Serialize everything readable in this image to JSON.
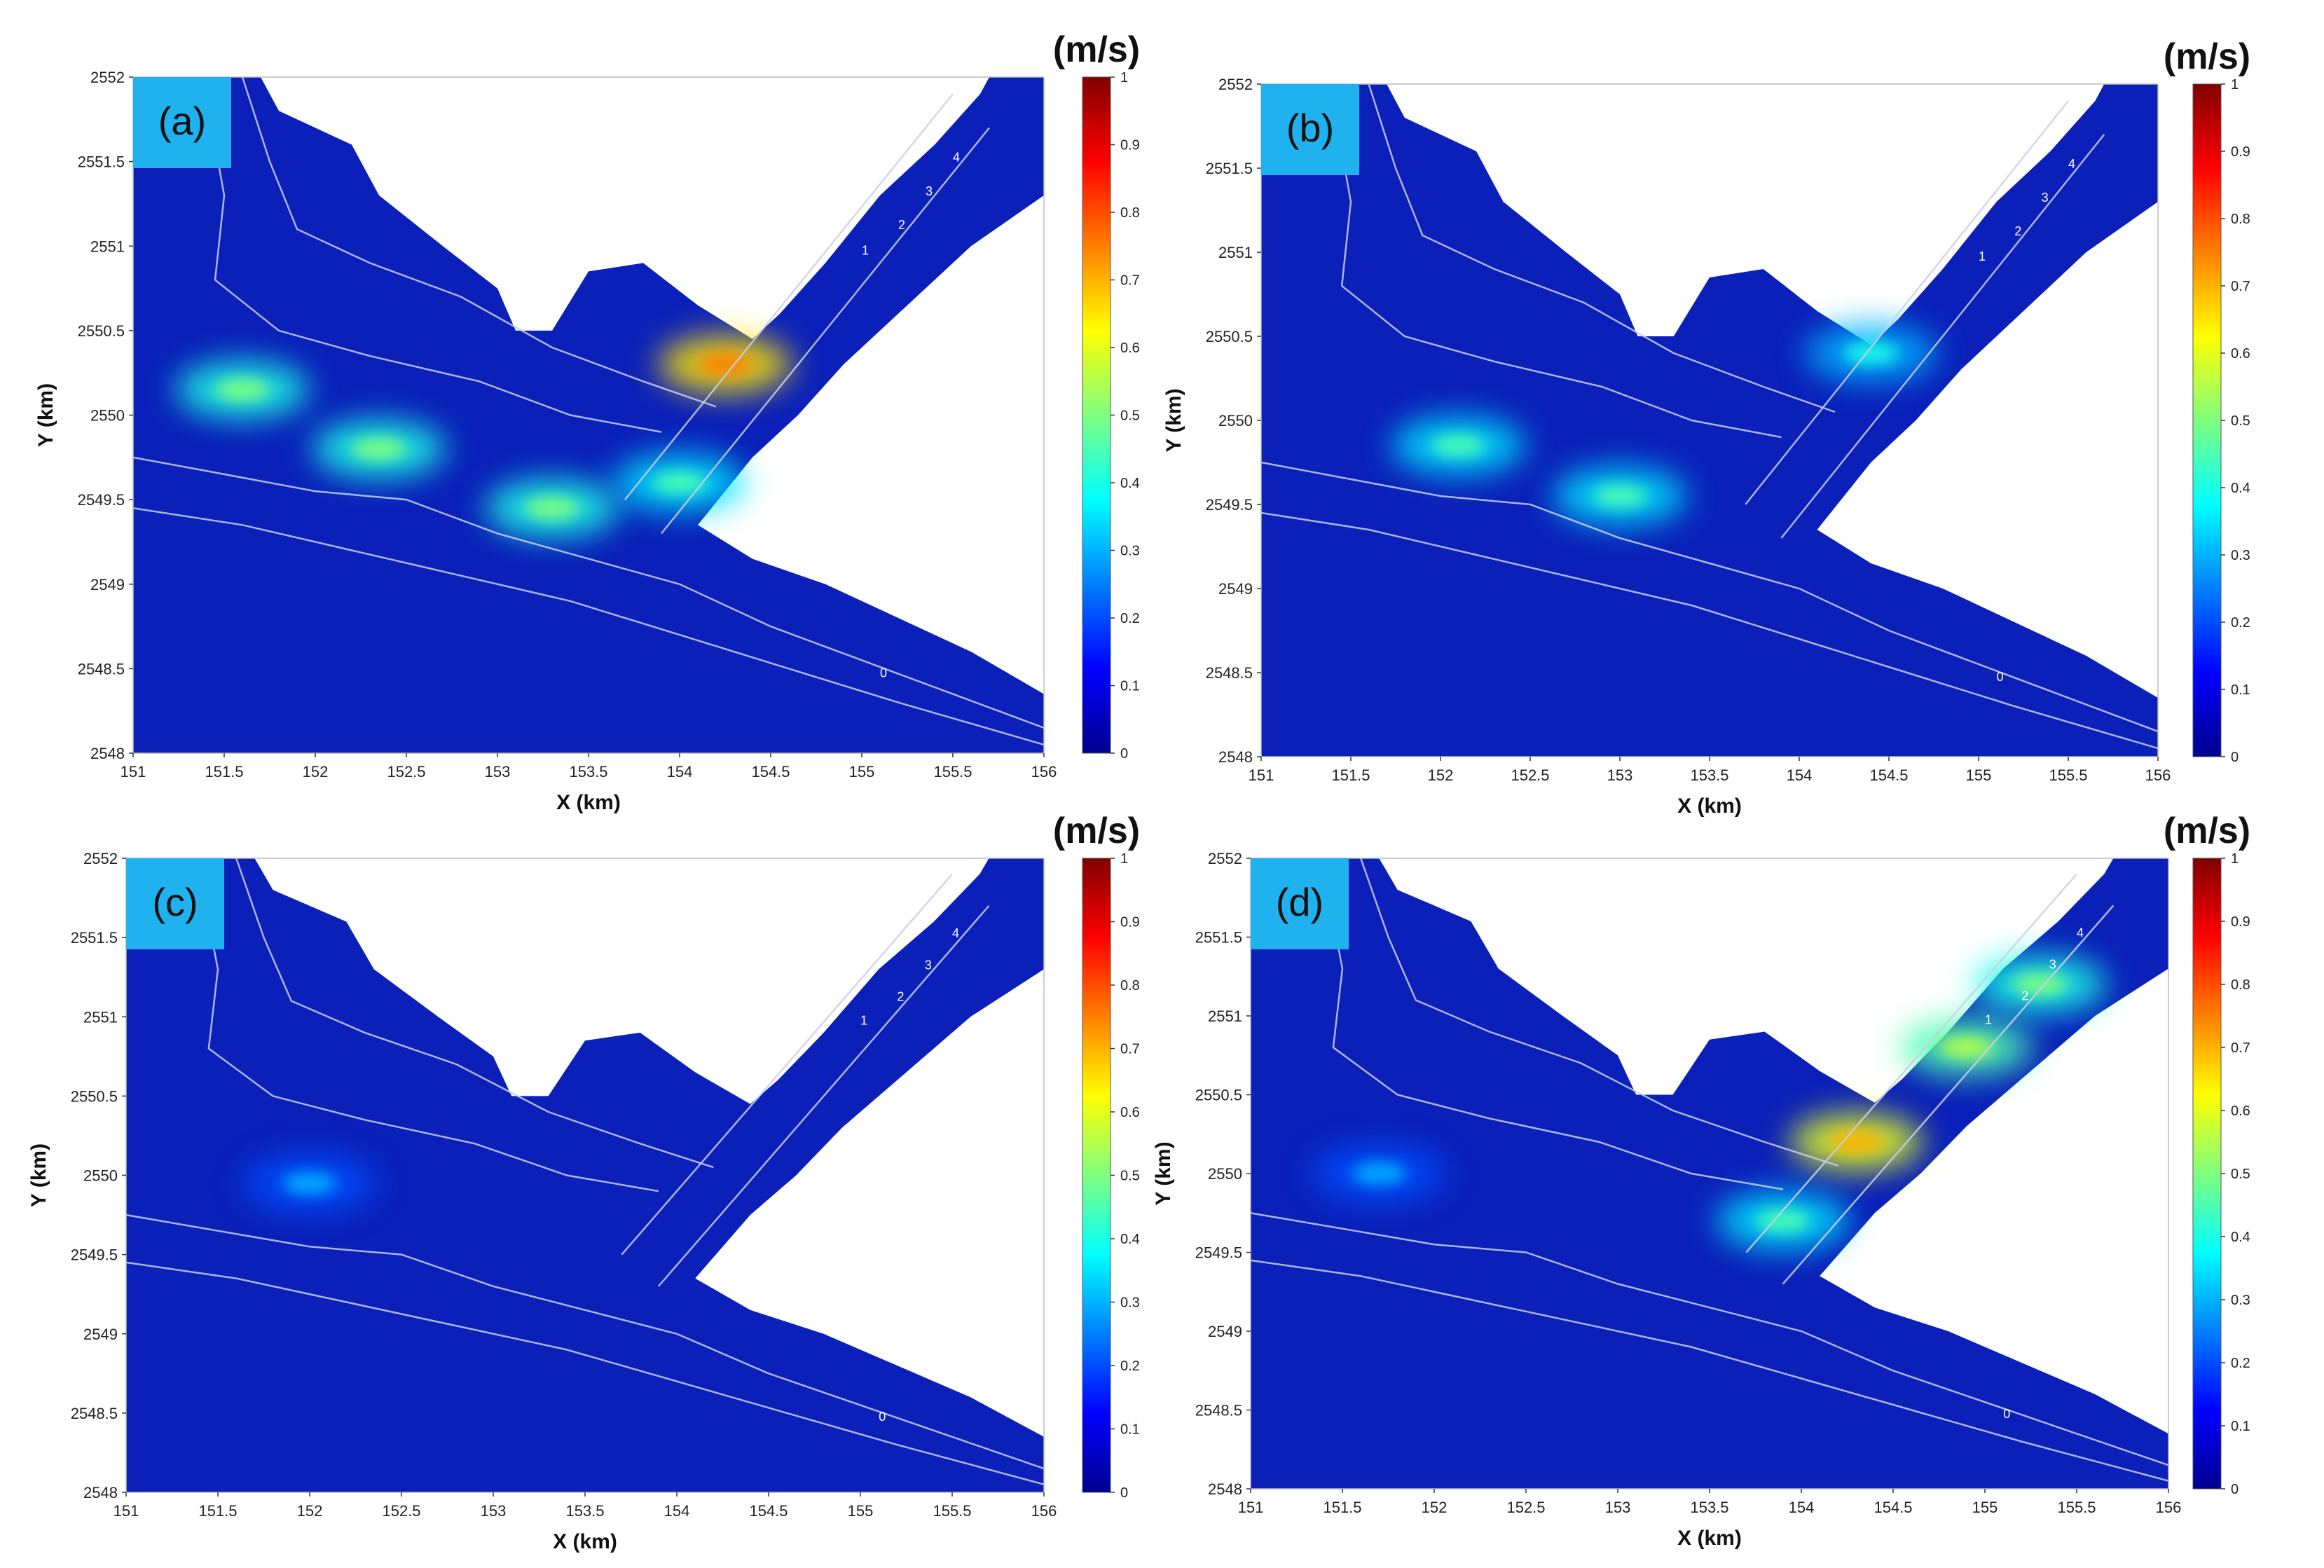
{
  "chart_data": [
    {
      "type": "heatmap",
      "panel_label": "(a)",
      "xlabel": "X (km)",
      "ylabel": "Y (km)",
      "colorbar_title": "(m/s)",
      "xlim": [
        151,
        156
      ],
      "ylim": [
        2548,
        2552
      ],
      "clim": [
        0,
        1
      ],
      "x_ticks": [
        "151",
        "151.5",
        "152",
        "152.5",
        "153",
        "153.5",
        "154",
        "154.5",
        "155",
        "155.5",
        "156"
      ],
      "y_ticks": [
        "2548",
        "2548.5",
        "2549",
        "2549.5",
        "2550",
        "2550.5",
        "2551",
        "2551.5",
        "2552"
      ],
      "colorbar_ticks": [
        "0",
        "0.1",
        "0.2",
        "0.3",
        "0.4",
        "0.5",
        "0.6",
        "0.7",
        "0.8",
        "0.9",
        "1"
      ],
      "contour_labels": [
        "0",
        "1",
        "2",
        "3",
        "4",
        "0",
        "0"
      ],
      "hotspots": [
        {
          "x": 154.25,
          "y": 2550.3,
          "speed": 0.65
        },
        {
          "x": 154.0,
          "y": 2549.6,
          "speed": 0.35
        },
        {
          "x": 151.6,
          "y": 2550.15,
          "speed": 0.4
        },
        {
          "x": 152.35,
          "y": 2549.8,
          "speed": 0.4
        },
        {
          "x": 153.3,
          "y": 2549.45,
          "speed": 0.4
        }
      ]
    },
    {
      "type": "heatmap",
      "panel_label": "(b)",
      "xlabel": "X (km)",
      "ylabel": "Y (km)",
      "colorbar_title": "(m/s)",
      "xlim": [
        151,
        156
      ],
      "ylim": [
        2548,
        2552
      ],
      "clim": [
        0,
        1
      ],
      "x_ticks": [
        "151",
        "151.5",
        "152",
        "152.5",
        "153",
        "153.5",
        "154",
        "154.5",
        "155",
        "155.5",
        "156"
      ],
      "y_ticks": [
        "2548",
        "2548.5",
        "2549",
        "2549.5",
        "2550",
        "2550.5",
        "2551",
        "2551.5",
        "2552"
      ],
      "colorbar_ticks": [
        "0",
        "0.1",
        "0.2",
        "0.3",
        "0.4",
        "0.5",
        "0.6",
        "0.7",
        "0.8",
        "0.9",
        "1"
      ],
      "contour_labels": [
        "0",
        "1",
        "2",
        "3",
        "4",
        "0",
        "0"
      ],
      "hotspots": [
        {
          "x": 152.1,
          "y": 2549.85,
          "speed": 0.35
        },
        {
          "x": 153.0,
          "y": 2549.55,
          "speed": 0.35
        },
        {
          "x": 154.4,
          "y": 2550.4,
          "speed": 0.3
        }
      ]
    },
    {
      "type": "heatmap",
      "panel_label": "(c)",
      "xlabel": "X (km)",
      "ylabel": "Y (km)",
      "colorbar_title": "(m/s)",
      "xlim": [
        151,
        156
      ],
      "ylim": [
        2548,
        2552
      ],
      "clim": [
        0,
        1
      ],
      "x_ticks": [
        "151",
        "151.5",
        "152",
        "152.5",
        "153",
        "153.5",
        "154",
        "154.5",
        "155",
        "155.5",
        "156"
      ],
      "y_ticks": [
        "2548",
        "2548.5",
        "2549",
        "2549.5",
        "2550",
        "2550.5",
        "2551",
        "2551.5",
        "2552"
      ],
      "colorbar_ticks": [
        "0",
        "0.1",
        "0.2",
        "0.3",
        "0.4",
        "0.5",
        "0.6",
        "0.7",
        "0.8",
        "0.9",
        "1"
      ],
      "contour_labels": [
        "0",
        "1",
        "2",
        "3",
        "4",
        "0",
        "0"
      ],
      "hotspots": [
        {
          "x": 152.0,
          "y": 2549.95,
          "speed": 0.2
        }
      ]
    },
    {
      "type": "heatmap",
      "panel_label": "(d)",
      "xlabel": "X (km)",
      "ylabel": "Y (km)",
      "colorbar_title": "(m/s)",
      "xlim": [
        151,
        156
      ],
      "ylim": [
        2548,
        2552
      ],
      "clim": [
        0,
        1
      ],
      "x_ticks": [
        "151",
        "151.5",
        "152",
        "152.5",
        "153",
        "153.5",
        "154",
        "154.5",
        "155",
        "155.5",
        "156"
      ],
      "y_ticks": [
        "2548",
        "2548.5",
        "2549",
        "2549.5",
        "2550",
        "2550.5",
        "2551",
        "2551.5",
        "2552"
      ],
      "colorbar_ticks": [
        "0",
        "0.1",
        "0.2",
        "0.3",
        "0.4",
        "0.5",
        "0.6",
        "0.7",
        "0.8",
        "0.9",
        "1"
      ],
      "contour_labels": [
        "0",
        "1",
        "2",
        "3",
        "4",
        "0",
        "0"
      ],
      "hotspots": [
        {
          "x": 154.3,
          "y": 2550.2,
          "speed": 0.6
        },
        {
          "x": 154.9,
          "y": 2550.8,
          "speed": 0.45
        },
        {
          "x": 155.3,
          "y": 2551.2,
          "speed": 0.4
        },
        {
          "x": 153.9,
          "y": 2549.7,
          "speed": 0.35
        },
        {
          "x": 151.7,
          "y": 2550.0,
          "speed": 0.2
        }
      ]
    }
  ]
}
